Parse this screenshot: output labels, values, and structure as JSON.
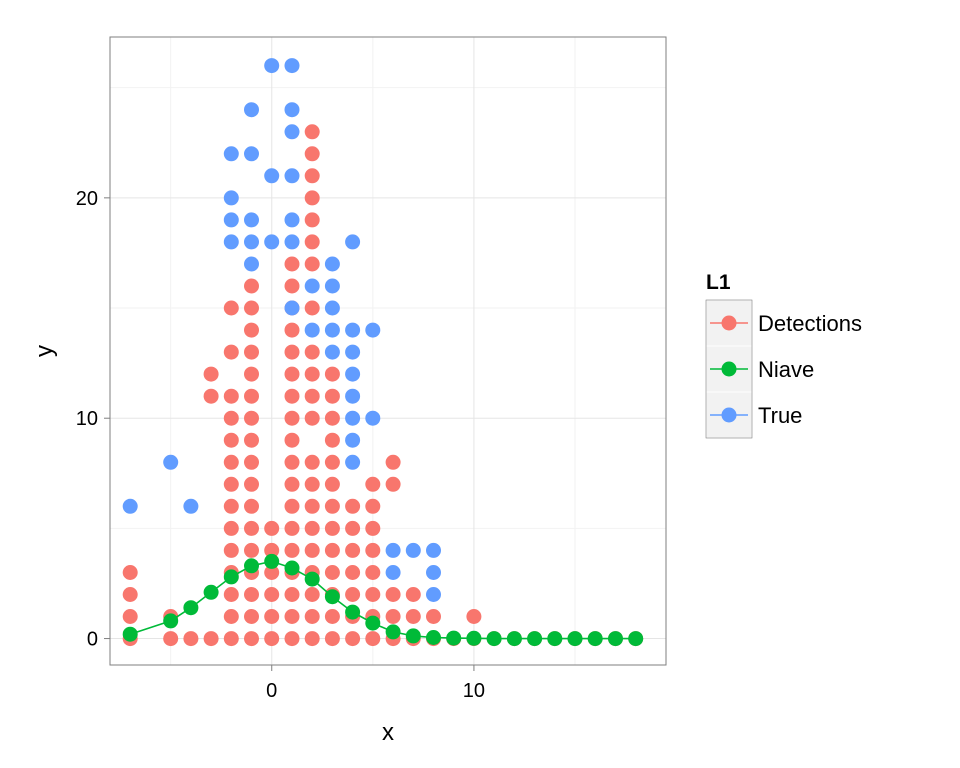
{
  "chart_data": {
    "type": "scatter",
    "title": "",
    "xlabel": "x",
    "ylabel": "y",
    "xlim": [
      -8,
      19.5
    ],
    "ylim": [
      -1.2,
      27.3
    ],
    "x_ticks": [
      0,
      10
    ],
    "y_ticks": [
      0,
      10,
      20
    ],
    "minor_x_ticks": [
      -5,
      5,
      15
    ],
    "minor_y_ticks": [
      5,
      15,
      25
    ],
    "grid": true,
    "legend": {
      "title": "L1",
      "position": "right"
    },
    "series": [
      {
        "name": "Detections",
        "color": "#F8766D",
        "points": [
          [
            -7,
            0
          ],
          [
            -7,
            1
          ],
          [
            -7,
            2
          ],
          [
            -7,
            3
          ],
          [
            -5,
            0
          ],
          [
            -5,
            1
          ],
          [
            -4,
            0
          ],
          [
            -3,
            0
          ],
          [
            -3,
            11
          ],
          [
            -3,
            12
          ],
          [
            -2,
            0
          ],
          [
            -2,
            1
          ],
          [
            -2,
            2
          ],
          [
            -2,
            3
          ],
          [
            -2,
            4
          ],
          [
            -2,
            5
          ],
          [
            -2,
            6
          ],
          [
            -2,
            7
          ],
          [
            -2,
            8
          ],
          [
            -2,
            9
          ],
          [
            -2,
            10
          ],
          [
            -2,
            11
          ],
          [
            -2,
            13
          ],
          [
            -2,
            15
          ],
          [
            -1,
            0
          ],
          [
            -1,
            1
          ],
          [
            -1,
            2
          ],
          [
            -1,
            3
          ],
          [
            -1,
            4
          ],
          [
            -1,
            5
          ],
          [
            -1,
            6
          ],
          [
            -1,
            7
          ],
          [
            -1,
            8
          ],
          [
            -1,
            9
          ],
          [
            -1,
            10
          ],
          [
            -1,
            11
          ],
          [
            -1,
            12
          ],
          [
            -1,
            13
          ],
          [
            -1,
            14
          ],
          [
            -1,
            15
          ],
          [
            -1,
            16
          ],
          [
            0,
            0
          ],
          [
            0,
            1
          ],
          [
            0,
            2
          ],
          [
            0,
            3
          ],
          [
            0,
            4
          ],
          [
            0,
            5
          ],
          [
            1,
            0
          ],
          [
            1,
            1
          ],
          [
            1,
            2
          ],
          [
            1,
            3
          ],
          [
            1,
            4
          ],
          [
            1,
            5
          ],
          [
            1,
            6
          ],
          [
            1,
            7
          ],
          [
            1,
            8
          ],
          [
            1,
            9
          ],
          [
            1,
            10
          ],
          [
            1,
            11
          ],
          [
            1,
            12
          ],
          [
            1,
            13
          ],
          [
            1,
            14
          ],
          [
            1,
            15
          ],
          [
            1,
            16
          ],
          [
            1,
            17
          ],
          [
            2,
            0
          ],
          [
            2,
            1
          ],
          [
            2,
            2
          ],
          [
            2,
            3
          ],
          [
            2,
            4
          ],
          [
            2,
            5
          ],
          [
            2,
            6
          ],
          [
            2,
            7
          ],
          [
            2,
            8
          ],
          [
            2,
            10
          ],
          [
            2,
            11
          ],
          [
            2,
            12
          ],
          [
            2,
            13
          ],
          [
            2,
            15
          ],
          [
            2,
            17
          ],
          [
            2,
            18
          ],
          [
            2,
            19
          ],
          [
            2,
            20
          ],
          [
            2,
            21
          ],
          [
            2,
            22
          ],
          [
            2,
            23
          ],
          [
            3,
            0
          ],
          [
            3,
            1
          ],
          [
            3,
            2
          ],
          [
            3,
            3
          ],
          [
            3,
            4
          ],
          [
            3,
            5
          ],
          [
            3,
            6
          ],
          [
            3,
            7
          ],
          [
            3,
            8
          ],
          [
            3,
            9
          ],
          [
            3,
            10
          ],
          [
            3,
            11
          ],
          [
            3,
            12
          ],
          [
            4,
            0
          ],
          [
            4,
            1
          ],
          [
            4,
            2
          ],
          [
            4,
            3
          ],
          [
            4,
            4
          ],
          [
            4,
            5
          ],
          [
            4,
            6
          ],
          [
            5,
            0
          ],
          [
            5,
            1
          ],
          [
            5,
            2
          ],
          [
            5,
            3
          ],
          [
            5,
            4
          ],
          [
            5,
            5
          ],
          [
            5,
            6
          ],
          [
            5,
            7
          ],
          [
            6,
            0
          ],
          [
            6,
            1
          ],
          [
            6,
            2
          ],
          [
            6,
            7
          ],
          [
            6,
            8
          ],
          [
            7,
            0
          ],
          [
            7,
            1
          ],
          [
            7,
            2
          ],
          [
            8,
            0
          ],
          [
            8,
            1
          ],
          [
            9,
            0
          ],
          [
            10,
            0
          ],
          [
            10,
            1
          ],
          [
            11,
            0
          ],
          [
            12,
            0
          ],
          [
            13,
            0
          ],
          [
            14,
            0
          ],
          [
            15,
            0
          ],
          [
            16,
            0
          ],
          [
            17,
            0
          ],
          [
            18,
            0
          ]
        ]
      },
      {
        "name": "Niave",
        "color": "#00BA38",
        "line": true,
        "points": [
          [
            -7,
            0.2
          ],
          [
            -5,
            0.8
          ],
          [
            -4,
            1.4
          ],
          [
            -3,
            2.1
          ],
          [
            -2,
            2.8
          ],
          [
            -1,
            3.3
          ],
          [
            0,
            3.5
          ],
          [
            1,
            3.2
          ],
          [
            2,
            2.7
          ],
          [
            3,
            1.9
          ],
          [
            4,
            1.2
          ],
          [
            5,
            0.7
          ],
          [
            6,
            0.3
          ],
          [
            7,
            0.12
          ],
          [
            8,
            0.05
          ],
          [
            9,
            0.02
          ],
          [
            10,
            0.01
          ],
          [
            11,
            0
          ],
          [
            12,
            0
          ],
          [
            13,
            0
          ],
          [
            14,
            0
          ],
          [
            15,
            0
          ],
          [
            16,
            0
          ],
          [
            17,
            0
          ],
          [
            18,
            0
          ]
        ]
      },
      {
        "name": "True",
        "color": "#619CFF",
        "points": [
          [
            -7,
            6
          ],
          [
            -5,
            8
          ],
          [
            -4,
            6
          ],
          [
            -2,
            18
          ],
          [
            -2,
            19
          ],
          [
            -2,
            20
          ],
          [
            -2,
            22
          ],
          [
            -1,
            17
          ],
          [
            -1,
            18
          ],
          [
            -1,
            19
          ],
          [
            -1,
            22
          ],
          [
            -1,
            24
          ],
          [
            0,
            18
          ],
          [
            0,
            21
          ],
          [
            0,
            26
          ],
          [
            1,
            15
          ],
          [
            1,
            18
          ],
          [
            1,
            19
          ],
          [
            1,
            21
          ],
          [
            1,
            23
          ],
          [
            1,
            24
          ],
          [
            1,
            26
          ],
          [
            2,
            14
          ],
          [
            2,
            16
          ],
          [
            3,
            13
          ],
          [
            3,
            14
          ],
          [
            3,
            15
          ],
          [
            3,
            16
          ],
          [
            3,
            17
          ],
          [
            4,
            8
          ],
          [
            4,
            9
          ],
          [
            4,
            10
          ],
          [
            4,
            11
          ],
          [
            4,
            12
          ],
          [
            4,
            13
          ],
          [
            4,
            14
          ],
          [
            4,
            18
          ],
          [
            5,
            10
          ],
          [
            5,
            14
          ],
          [
            6,
            3
          ],
          [
            6,
            4
          ],
          [
            7,
            4
          ],
          [
            8,
            2
          ],
          [
            8,
            3
          ],
          [
            8,
            4
          ]
        ]
      }
    ]
  }
}
